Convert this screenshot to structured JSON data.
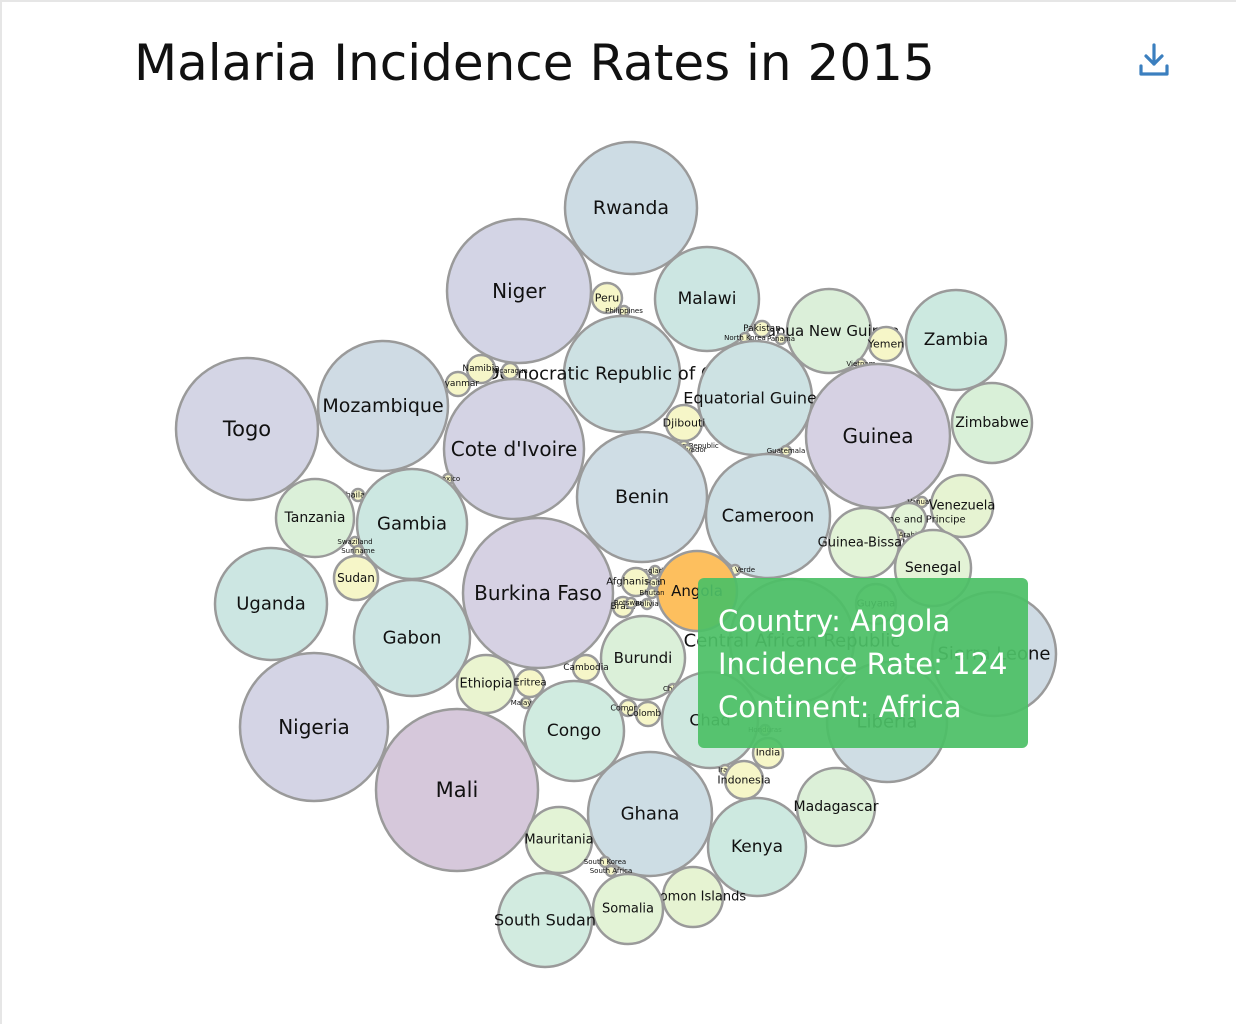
{
  "title": "Malaria Incidence Rates in 2015",
  "download_icon": "download-icon",
  "tooltip": {
    "country": "Country: Angola",
    "incidence": "Incidence Rate: 124",
    "continent": "Continent: Africa"
  },
  "colors": {
    "highlight": "#fdbf5e",
    "tooltip_bg": "#4cc066",
    "stroke": "#9a9a9a",
    "download": "#3b7fbf"
  },
  "chart_data": {
    "type": "bubble",
    "title": "Malaria Incidence Rates in 2015",
    "highlighted": "Angola",
    "items": [
      {
        "name": "Rwanda",
        "color": "#cddce4"
      },
      {
        "name": "Niger",
        "color": "#d3d4e5"
      },
      {
        "name": "Malawi",
        "color": "#cce6e2"
      },
      {
        "name": "Peru",
        "color": "#f6f6c8"
      },
      {
        "name": "Philippines",
        "color": "#f6f6c8"
      },
      {
        "name": "Papua New Guinea",
        "color": "#dbefd9"
      },
      {
        "name": "Zambia",
        "color": "#cce9e0"
      },
      {
        "name": "Pakistan",
        "color": "#f6f6c8"
      },
      {
        "name": "Panama",
        "color": "#f6f6c8"
      },
      {
        "name": "North Korea",
        "color": "#f6f6c8"
      },
      {
        "name": "Yemen",
        "color": "#f6f6c8"
      },
      {
        "name": "Vietnam",
        "color": "#f6f6c8"
      },
      {
        "name": "Democratic Republic of Congo",
        "color": "#cde1e3"
      },
      {
        "name": "Namibia",
        "color": "#f6f6c8"
      },
      {
        "name": "Myanmar",
        "color": "#f6f6c8"
      },
      {
        "name": "Nicaragua",
        "color": "#f6f6c8"
      },
      {
        "name": "Togo",
        "color": "#d4d5e5"
      },
      {
        "name": "Mozambique",
        "color": "#cfdbe4"
      },
      {
        "name": "Cote d'Ivoire",
        "color": "#d4d3e4"
      },
      {
        "name": "Equatorial Guinea",
        "color": "#cde2e3"
      },
      {
        "name": "Guinea",
        "color": "#d6d1e3"
      },
      {
        "name": "Zimbabwe",
        "color": "#d9f0d8"
      },
      {
        "name": "Djibouti",
        "color": "#f6f6c8"
      },
      {
        "name": "Dominican Republic",
        "color": "#f6f6c8"
      },
      {
        "name": "El Salvador",
        "color": "#f6f6c8"
      },
      {
        "name": "Guatemala",
        "color": "#f6f6c8"
      },
      {
        "name": "Mexico",
        "color": "#f6f6c8"
      },
      {
        "name": "Benin",
        "color": "#cfdde5"
      },
      {
        "name": "Cameroon",
        "color": "#cddfe4"
      },
      {
        "name": "Thailand",
        "color": "#f6f6c8"
      },
      {
        "name": "Tanzania",
        "color": "#dbf0d9"
      },
      {
        "name": "Gambia",
        "color": "#cce7e1"
      },
      {
        "name": "Vanuatu",
        "color": "#f6f6c8"
      },
      {
        "name": "Venezuela",
        "color": "#e6f3d2"
      },
      {
        "name": "Sao Tome and Principe",
        "color": "#e2f3d7"
      },
      {
        "name": "Saudi Arabia",
        "color": "#f6f6c8"
      },
      {
        "name": "Guinea-Bissau",
        "color": "#e2f3d7"
      },
      {
        "name": "Swaziland",
        "color": "#f6f6c8"
      },
      {
        "name": "Suriname",
        "color": "#f6f6c8"
      },
      {
        "name": "Sudan",
        "color": "#f6f6c8"
      },
      {
        "name": "Senegal",
        "color": "#e3f3d6"
      },
      {
        "name": "Uganda",
        "color": "#cce6e2"
      },
      {
        "name": "Burkina Faso",
        "color": "#d6d1e3"
      },
      {
        "name": "Bangladesh",
        "color": "#f6f6c8"
      },
      {
        "name": "Cape Verde",
        "color": "#f6f6c8"
      },
      {
        "name": "Angola",
        "color": "#fdbf5e"
      },
      {
        "name": "Afghanistan",
        "color": "#f6f6c8"
      },
      {
        "name": "Haiti",
        "color": "#f6f6c8"
      },
      {
        "name": "Bhutan",
        "color": "#f6f6c8"
      },
      {
        "name": "Brazil",
        "color": "#f6f6c8"
      },
      {
        "name": "Botswana",
        "color": "#f6f6c8"
      },
      {
        "name": "Bolivia",
        "color": "#f6f6c8"
      },
      {
        "name": "Guyana",
        "color": "#e3f3d6"
      },
      {
        "name": "Central African Republic",
        "color": "#cfdce4"
      },
      {
        "name": "Sierra Leone",
        "color": "#cfdbe4"
      },
      {
        "name": "Gabon",
        "color": "#cce5e3"
      },
      {
        "name": "Burundi",
        "color": "#dbf0d9"
      },
      {
        "name": "Ethiopia",
        "color": "#eaf4d0"
      },
      {
        "name": "Eritrea",
        "color": "#f6f6c8"
      },
      {
        "name": "Cambodia",
        "color": "#f6f6c8"
      },
      {
        "name": "Malaysia",
        "color": "#f6f6c8"
      },
      {
        "name": "China",
        "color": "#f6f6c8"
      },
      {
        "name": "Nigeria",
        "color": "#d4d4e5"
      },
      {
        "name": "Congo",
        "color": "#d0ebe0"
      },
      {
        "name": "Comoros",
        "color": "#f6f6c8"
      },
      {
        "name": "Colombia",
        "color": "#f6f6c8"
      },
      {
        "name": "Chad",
        "color": "#cfe8e0"
      },
      {
        "name": "Honduras",
        "color": "#f6f6c8"
      },
      {
        "name": "Liberia",
        "color": "#cfdde4"
      },
      {
        "name": "India",
        "color": "#f6f6c8"
      },
      {
        "name": "Iran",
        "color": "#f6f6c8"
      },
      {
        "name": "Indonesia",
        "color": "#f6f6c8"
      },
      {
        "name": "Mali",
        "color": "#d6c8db"
      },
      {
        "name": "Ghana",
        "color": "#cddde4"
      },
      {
        "name": "Madagascar",
        "color": "#dcf0d8"
      },
      {
        "name": "Kenya",
        "color": "#cde9e0"
      },
      {
        "name": "Mauritania",
        "color": "#e3f3d6"
      },
      {
        "name": "South Korea",
        "color": "#f6f6c8"
      },
      {
        "name": "South Africa",
        "color": "#f6f6c8"
      },
      {
        "name": "Solomon Islands",
        "color": "#e6f3d2"
      },
      {
        "name": "Somalia",
        "color": "#e3f3d6"
      },
      {
        "name": "South Sudan",
        "color": "#d2ebe0"
      }
    ]
  }
}
